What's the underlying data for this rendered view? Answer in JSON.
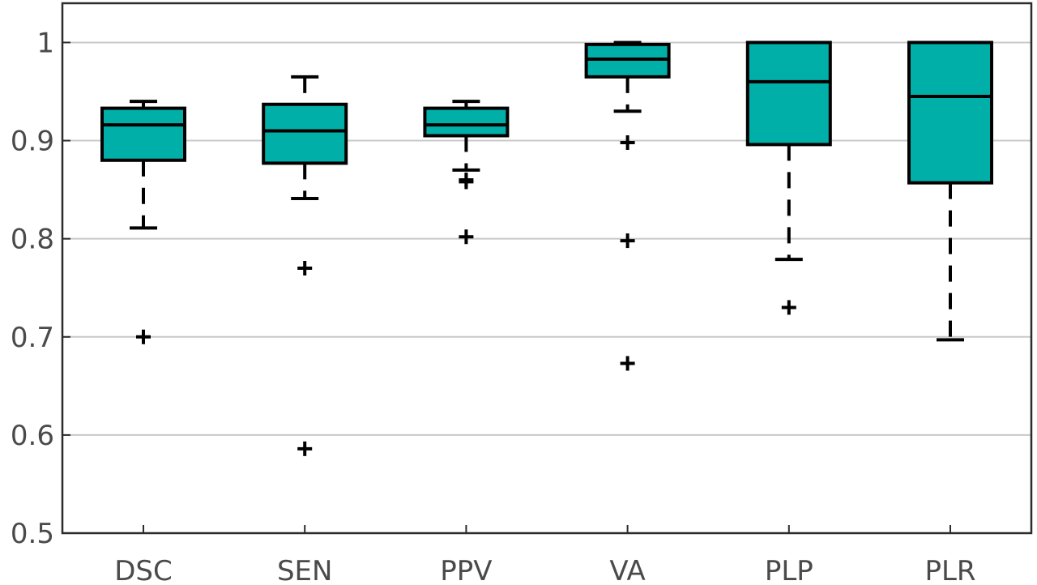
{
  "chart_data": {
    "type": "box",
    "title": "",
    "xlabel": "",
    "ylabel": "",
    "ylim": [
      0.5,
      1.04
    ],
    "yticks": [
      0.5,
      0.6,
      0.7,
      0.8,
      0.9,
      1
    ],
    "ytick_labels": [
      "0.5",
      "0.6",
      "0.7",
      "0.8",
      "0.9",
      "1"
    ],
    "grid": "horizontal",
    "box_color": "#00afa8",
    "categories": [
      "DSC",
      "SEN",
      "PPV",
      "VA",
      "PLP",
      "PLR"
    ],
    "boxes": [
      {
        "category": "DSC",
        "whisker_low": 0.811,
        "q1": 0.88,
        "median": 0.916,
        "q3": 0.933,
        "whisker_high": 0.94,
        "outliers": [
          0.7
        ]
      },
      {
        "category": "SEN",
        "whisker_low": 0.841,
        "q1": 0.877,
        "median": 0.91,
        "q3": 0.937,
        "whisker_high": 0.965,
        "outliers": [
          0.77,
          0.586
        ]
      },
      {
        "category": "PPV",
        "whisker_low": 0.87,
        "q1": 0.905,
        "median": 0.916,
        "q3": 0.933,
        "whisker_high": 0.94,
        "outliers": [
          0.86,
          0.858,
          0.802
        ]
      },
      {
        "category": "VA",
        "whisker_low": 0.93,
        "q1": 0.965,
        "median": 0.983,
        "q3": 0.998,
        "whisker_high": 1.0,
        "outliers": [
          0.898,
          0.798,
          0.673
        ]
      },
      {
        "category": "PLP",
        "whisker_low": 0.779,
        "q1": 0.896,
        "median": 0.96,
        "q3": 1.0,
        "whisker_high": 1.0,
        "outliers": [
          0.73
        ]
      },
      {
        "category": "PLR",
        "whisker_low": 0.697,
        "q1": 0.857,
        "median": 0.945,
        "q3": 1.0,
        "whisker_high": 1.0,
        "outliers": []
      }
    ]
  }
}
